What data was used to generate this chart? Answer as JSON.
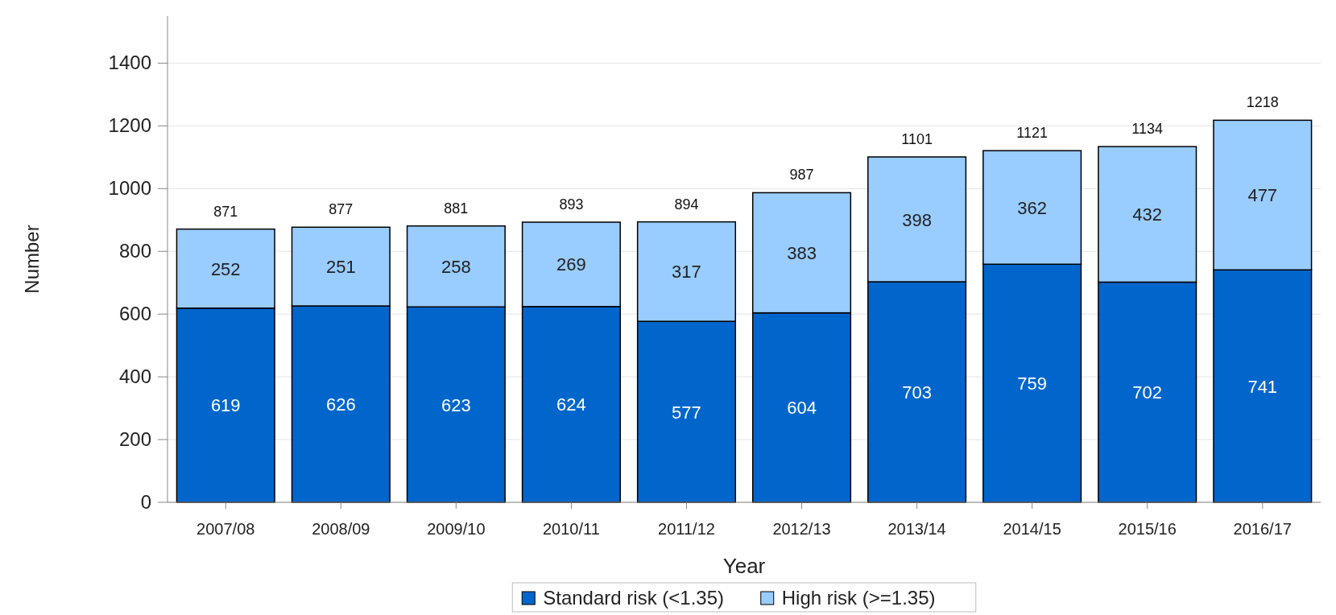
{
  "chart_data": {
    "type": "bar",
    "stacked": true,
    "xlabel": "Year",
    "ylabel": "Number",
    "categories": [
      "2007/08",
      "2008/09",
      "2009/10",
      "2010/11",
      "2011/12",
      "2012/13",
      "2013/14",
      "2014/15",
      "2015/16",
      "2016/17"
    ],
    "series": [
      {
        "name": "Standard risk (<1.35)",
        "color": "#0066cc",
        "values": [
          619,
          626,
          623,
          624,
          577,
          604,
          703,
          759,
          702,
          741
        ]
      },
      {
        "name": "High risk (>=1.35)",
        "color": "#99ccff",
        "values": [
          252,
          251,
          258,
          269,
          317,
          383,
          398,
          362,
          432,
          477
        ]
      }
    ],
    "totals": [
      "871",
      "877",
      "881",
      "893",
      "894",
      "987",
      "1101",
      "1121",
      "1134",
      "1218"
    ],
    "data_labels": true,
    "ylim": [
      0,
      1550
    ],
    "yticks": [
      0,
      200,
      400,
      600,
      800,
      1000,
      1200,
      1400
    ],
    "grid": "y",
    "legend": "bottom"
  }
}
